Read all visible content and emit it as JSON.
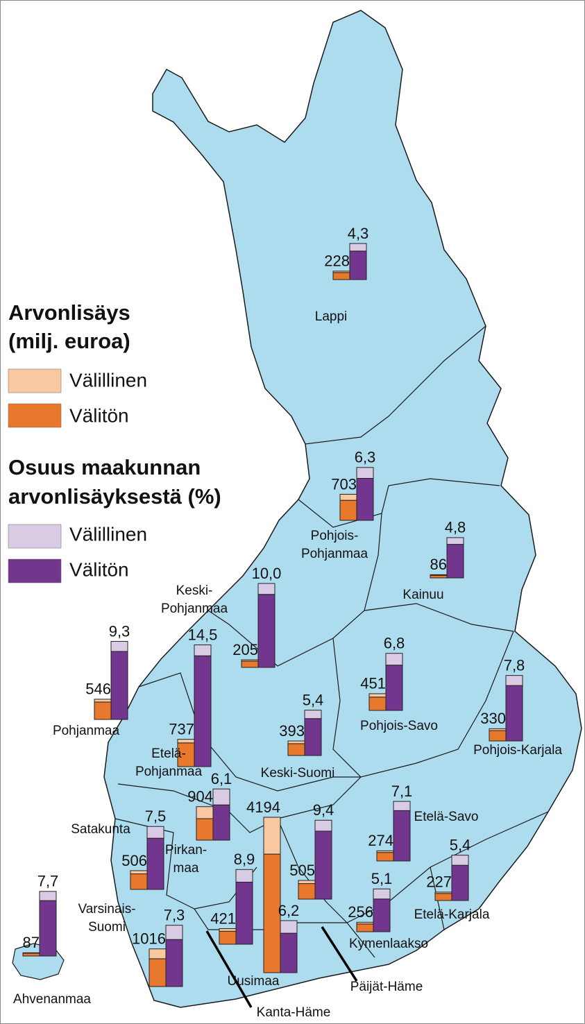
{
  "legend": {
    "title1": [
      "Arvonlisäys",
      "(milj. euroa)"
    ],
    "items1": [
      {
        "label": "Välillinen",
        "color": "#f8c9a0"
      },
      {
        "label": "Välitön",
        "color": "#e8782c"
      }
    ],
    "title2": [
      "Osuus maakunnan",
      "arvonlisäyksestä (%)"
    ],
    "items2": [
      {
        "label": "Välillinen",
        "color": "#d9cbe4"
      },
      {
        "label": "Välitön",
        "color": "#73368f"
      }
    ]
  },
  "regions": [
    {
      "name_lines": [
        "Lappi"
      ],
      "value_added": 228,
      "direct": 190,
      "indirect": 38,
      "share": 4.3,
      "share_label": "4,3",
      "share_direct": 3.4,
      "share_indirect": 0.9
    },
    {
      "name_lines": [
        "Pohjois-",
        "Pohjanmaa"
      ],
      "value_added": 703,
      "direct": 540,
      "indirect": 163,
      "share": 6.3,
      "share_label": "6,3",
      "share_direct": 5.0,
      "share_indirect": 1.3
    },
    {
      "name_lines": [
        "Kainuu"
      ],
      "value_added": 86,
      "direct": 70,
      "indirect": 16,
      "share": 4.8,
      "share_label": "4,8",
      "share_direct": 4.0,
      "share_indirect": 0.8
    },
    {
      "name_lines": [
        "Keski-",
        "Pohjanmaa"
      ],
      "value_added": 205,
      "direct": 170,
      "indirect": 35,
      "share": 10.0,
      "share_label": "10,0",
      "share_direct": 8.7,
      "share_indirect": 1.3
    },
    {
      "name_lines": [
        "Pohjanmaa"
      ],
      "value_added": 546,
      "direct": 470,
      "indirect": 76,
      "share": 9.3,
      "share_label": "9,3",
      "share_direct": 8.1,
      "share_indirect": 1.2
    },
    {
      "name_lines": [
        "Etelä-",
        "Pohjanmaa"
      ],
      "value_added": 737,
      "direct": 640,
      "indirect": 97,
      "share": 14.5,
      "share_label": "14,5",
      "share_direct": 13.2,
      "share_indirect": 1.3
    },
    {
      "name_lines": [
        "Pohjois-Savo"
      ],
      "value_added": 451,
      "direct": 360,
      "indirect": 91,
      "share": 6.8,
      "share_label": "6,8",
      "share_direct": 5.4,
      "share_indirect": 1.4
    },
    {
      "name_lines": [
        "Keski-Suomi"
      ],
      "value_added": 393,
      "direct": 320,
      "indirect": 73,
      "share": 5.4,
      "share_label": "5,4",
      "share_direct": 4.4,
      "share_indirect": 1.0
    },
    {
      "name_lines": [
        "Pohjois-Karjala"
      ],
      "value_added": 330,
      "direct": 280,
      "indirect": 50,
      "share": 7.8,
      "share_label": "7,8",
      "share_direct": 6.6,
      "share_indirect": 1.2
    },
    {
      "name_lines": [
        "Pirkan-",
        "maa"
      ],
      "value_added": 904,
      "direct": 580,
      "indirect": 324,
      "share": 6.1,
      "share_label": "6,1",
      "share_direct": 4.2,
      "share_indirect": 1.9
    },
    {
      "name_lines": [
        "Satakunta"
      ],
      "value_added": 506,
      "direct": 420,
      "indirect": 86,
      "share": 7.5,
      "share_label": "7,5",
      "share_direct": 6.1,
      "share_indirect": 1.4
    },
    {
      "name_lines": [
        "Etelä-Savo"
      ],
      "value_added": 274,
      "direct": 230,
      "indirect": 44,
      "share": 7.1,
      "share_label": "7,1",
      "share_direct": 6.0,
      "share_indirect": 1.1
    },
    {
      "name_lines": [
        "Uusimaa"
      ],
      "value_added": 4194,
      "direct": 3200,
      "indirect": 994,
      "share": 6.2,
      "share_label": "6,2",
      "share_direct": 4.7,
      "share_indirect": 1.5
    },
    {
      "name_lines": [
        "Kanta-Häme"
      ],
      "value_added": 421,
      "direct": 350,
      "indirect": 71,
      "share": 8.9,
      "share_label": "8,9",
      "share_direct": 7.4,
      "share_indirect": 1.5
    },
    {
      "name_lines": [
        "Päijät-Häme"
      ],
      "value_added": 505,
      "direct": 420,
      "indirect": 85,
      "share": 9.4,
      "share_label": "9,4",
      "share_direct": 8.1,
      "share_indirect": 1.3
    },
    {
      "name_lines": [
        "Etelä-Karjala"
      ],
      "value_added": 227,
      "direct": 190,
      "indirect": 37,
      "share": 5.4,
      "share_label": "5,4",
      "share_direct": 4.2,
      "share_indirect": 1.2
    },
    {
      "name_lines": [
        "Kymenlaakso"
      ],
      "value_added": 256,
      "direct": 210,
      "indirect": 46,
      "share": 5.1,
      "share_label": "5,1",
      "share_direct": 3.9,
      "share_indirect": 1.2
    },
    {
      "name_lines": [
        "Varsinais-",
        "Suomi"
      ],
      "value_added": 1016,
      "direct": 750,
      "indirect": 266,
      "share": 7.3,
      "share_label": "7,3",
      "share_direct": 5.6,
      "share_indirect": 1.7
    },
    {
      "name_lines": [
        "Ahvenanmaa"
      ],
      "value_added": 87,
      "direct": 75,
      "indirect": 12,
      "share": 7.7,
      "share_label": "7,7",
      "share_direct": 6.6,
      "share_indirect": 1.1
    }
  ]
}
